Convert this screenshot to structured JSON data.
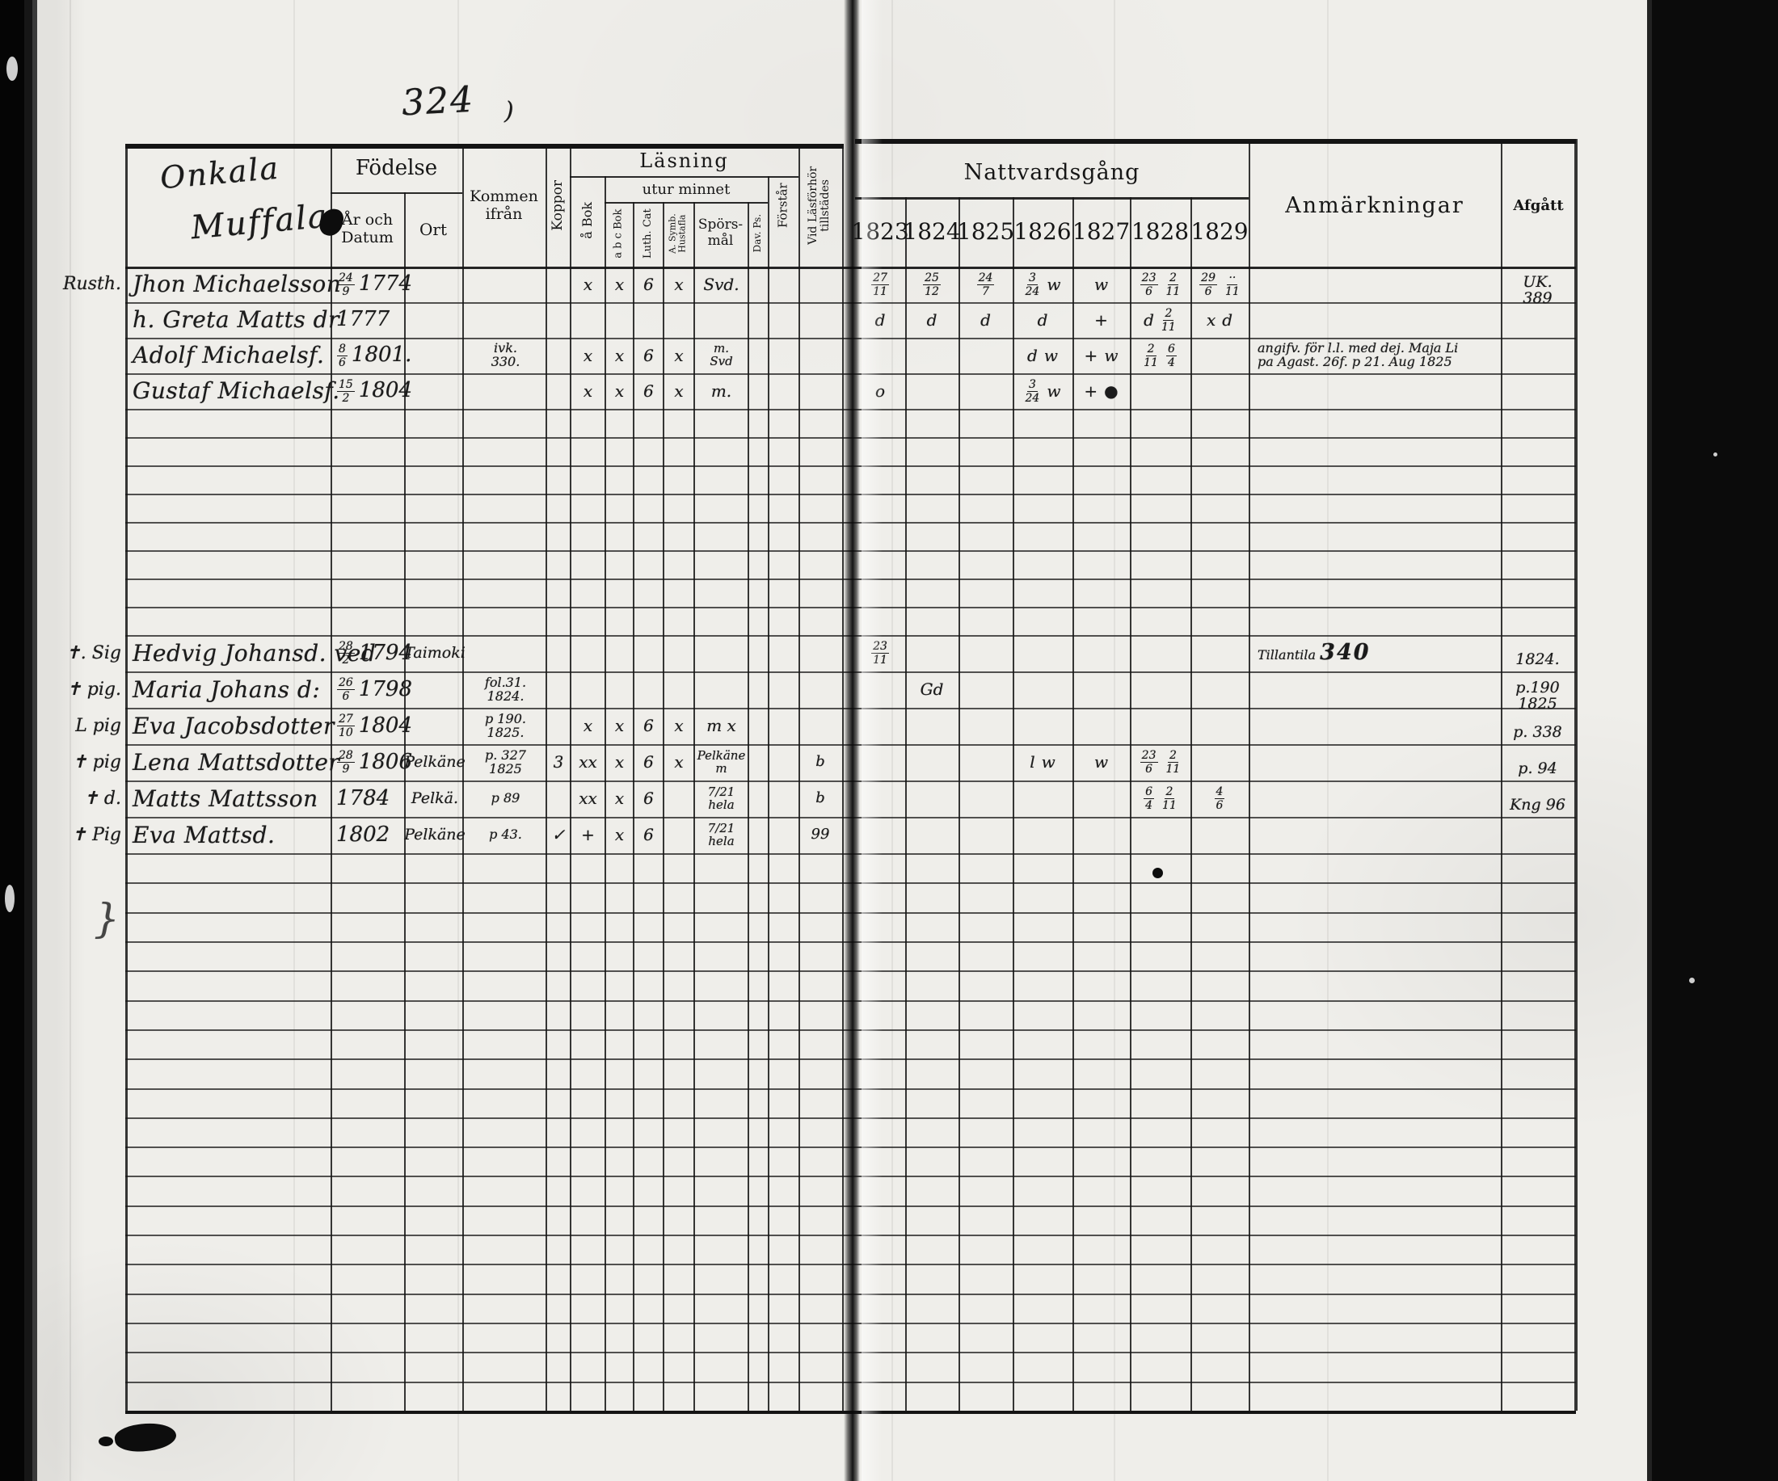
{
  "page": {
    "number": "324",
    "script_line1": "Onkala",
    "script_line2": "Muffala",
    "stray_paren": ")",
    "stray_brace": "}"
  },
  "headers": {
    "fodelse": "Födelse",
    "ar_l1": "År och",
    "ar_l2": "Datum",
    "ort": "Ort",
    "kommen_l1": "Kommen",
    "kommen_l2": "ifrån",
    "koppor": "Koppor",
    "lasning": "Läsning",
    "utur_minnet": "utur minnet",
    "a_bok": "å Bok",
    "abc_bok": "a b c Bok",
    "luth_cat": "Luth. Cat",
    "symb_l1": "A. Symb.",
    "symb_l2": "Hustafla",
    "spors_l1": "Spörs-",
    "spors_l2": "mål",
    "dav_ps": "Dav. Ps.",
    "forstar": "Förstår",
    "vidlas_l1": "Vid Läsförhör",
    "vidlas_l2": "tillstädes",
    "nattvardsgang": "Nattvardsgång",
    "years": [
      "1823",
      "1824",
      "1825",
      "1826",
      "1827",
      "1828",
      "1829"
    ],
    "anmarkningar": "Anmärkningar",
    "afgatt": "Afgått"
  },
  "rows": [
    {
      "line": 0,
      "margin": "Rusth.",
      "name": "Jhon Michaelsson",
      "date": "24/9 1774",
      "ort": "",
      "kommen": [],
      "koppor": "",
      "abok": "x",
      "abc": "x",
      "luth": "6",
      "hust": "x",
      "spors": [
        "Svd."
      ],
      "vidlas": "",
      "nv": [
        "27/11",
        "25/12",
        "24/7",
        "3/24 w",
        "w",
        "23/6 2/11",
        "29/6 ··/11"
      ],
      "anm": [],
      "afgatt": [
        "UK.",
        "389"
      ]
    },
    {
      "line": 1,
      "margin": "",
      "name": "h. Greta Matts dr",
      "date": "1777",
      "ort": "",
      "kommen": [],
      "koppor": "",
      "abok": "",
      "abc": "",
      "luth": "",
      "hust": "",
      "spors": [],
      "vidlas": "",
      "nv": [
        "d",
        "d",
        "d",
        "d",
        "+",
        "d 2/11",
        "x d"
      ],
      "anm": [],
      "afgatt": []
    },
    {
      "line": 2,
      "margin": "",
      "name": "Adolf Michaelsf.",
      "date": "8/6 1801.",
      "ort": "",
      "kommen": [
        "ivk.",
        "330."
      ],
      "koppor": "",
      "abok": "x",
      "abc": "x",
      "luth": "6",
      "hust": "x",
      "spors": [
        "m.",
        "Svd"
      ],
      "vidlas": "",
      "nv": [
        "",
        "",
        "",
        "d w",
        "+ w",
        "2/11 6/4",
        ""
      ],
      "anm": [
        "angifv. för l.l. med dej. Maja Li",
        "pa Agast. 26f. p 21. Aug 1825"
      ],
      "afgatt": []
    },
    {
      "line": 3,
      "margin": "",
      "name": "Gustaf Michaelsf.",
      "date": "15/2 1804",
      "ort": "",
      "kommen": [],
      "koppor": "",
      "abok": "x",
      "abc": "x",
      "luth": "6",
      "hust": "x",
      "spors": [
        "m."
      ],
      "vidlas": "",
      "nv": [
        "o",
        "",
        "",
        "3/24 w",
        "+ ●",
        "",
        ""
      ],
      "anm": [],
      "afgatt": []
    },
    {
      "line": 12,
      "margin": "✝. Sig",
      "name": "Hedvig Johansd. ved",
      "date": "28/2 1794",
      "ort": "Taimoki",
      "kommen": [],
      "koppor": "",
      "abok": "",
      "abc": "",
      "luth": "",
      "hust": "",
      "spors": [],
      "vidlas": "",
      "nv": [
        "23/11",
        "",
        "",
        "",
        "",
        "",
        ""
      ],
      "anm": [
        "Tillantila 340"
      ],
      "afgatt": [
        "1824."
      ]
    },
    {
      "line": 13,
      "margin": "✝ pig.",
      "name": "Maria Johans d:",
      "date": "26/6 1798",
      "ort": "",
      "kommen": [
        "fol.31.",
        "1824."
      ],
      "koppor": "",
      "abok": "",
      "abc": "",
      "luth": "",
      "hust": "",
      "spors": [],
      "vidlas": "",
      "nv": [
        "",
        "Gd",
        "",
        "",
        "",
        "",
        ""
      ],
      "anm": [],
      "afgatt": [
        "p.190",
        "1825"
      ]
    },
    {
      "line": 14,
      "margin": "L pig",
      "name": "Eva Jacobsdotter",
      "date": "27/10 1804",
      "ort": "",
      "kommen": [
        "p 190.",
        "1825."
      ],
      "koppor": "",
      "abok": "x",
      "abc": "x",
      "luth": "6",
      "hust": "x",
      "spors": [
        "m x"
      ],
      "vidlas": "",
      "nv": [
        "",
        "",
        "",
        "",
        "",
        "",
        ""
      ],
      "anm": [],
      "afgatt": [
        "p. 338"
      ]
    },
    {
      "line": 15,
      "margin": "✝ pig",
      "name": "Lena Mattsdotter",
      "date": "28/9 1806",
      "ort": "Pelkäne",
      "kommen": [
        "p. 327",
        "1825"
      ],
      "koppor": "3",
      "abok": "xx",
      "abc": "x",
      "luth": "6",
      "hust": "x",
      "spors": [
        "Pelkäne",
        "m"
      ],
      "vidlas": "b",
      "nv": [
        "",
        "",
        "",
        "l w",
        "w",
        "23/6 2/11",
        ""
      ],
      "anm": [],
      "afgatt": [
        "p. 94"
      ]
    },
    {
      "line": 16,
      "margin": "✝ d.",
      "name": "Matts Mattsson",
      "date": "1784",
      "ort": "Pelkä.",
      "kommen": [
        "p 89"
      ],
      "koppor": "",
      "abok": "xx",
      "abc": "x",
      "luth": "6",
      "hust": "",
      "spors": [
        "7/21",
        "hela"
      ],
      "vidlas": "b",
      "nv": [
        "",
        "",
        "",
        "",
        "",
        "6/4 2/11",
        "4/6"
      ],
      "anm": [],
      "afgatt": [
        "Kng 96"
      ]
    },
    {
      "line": 17,
      "margin": "✝ Pig",
      "name": "Eva Mattsd.",
      "date": "1802",
      "ort": "Pelkäne",
      "kommen": [
        "p 43."
      ],
      "koppor": "✓",
      "abok": "+",
      "abc": "x",
      "luth": "6",
      "hust": "",
      "spors": [
        "7/21",
        "hela"
      ],
      "vidlas": "99",
      "nv": [
        "",
        "",
        "",
        "",
        "",
        "",
        ""
      ],
      "anm": [],
      "afgatt": []
    }
  ]
}
